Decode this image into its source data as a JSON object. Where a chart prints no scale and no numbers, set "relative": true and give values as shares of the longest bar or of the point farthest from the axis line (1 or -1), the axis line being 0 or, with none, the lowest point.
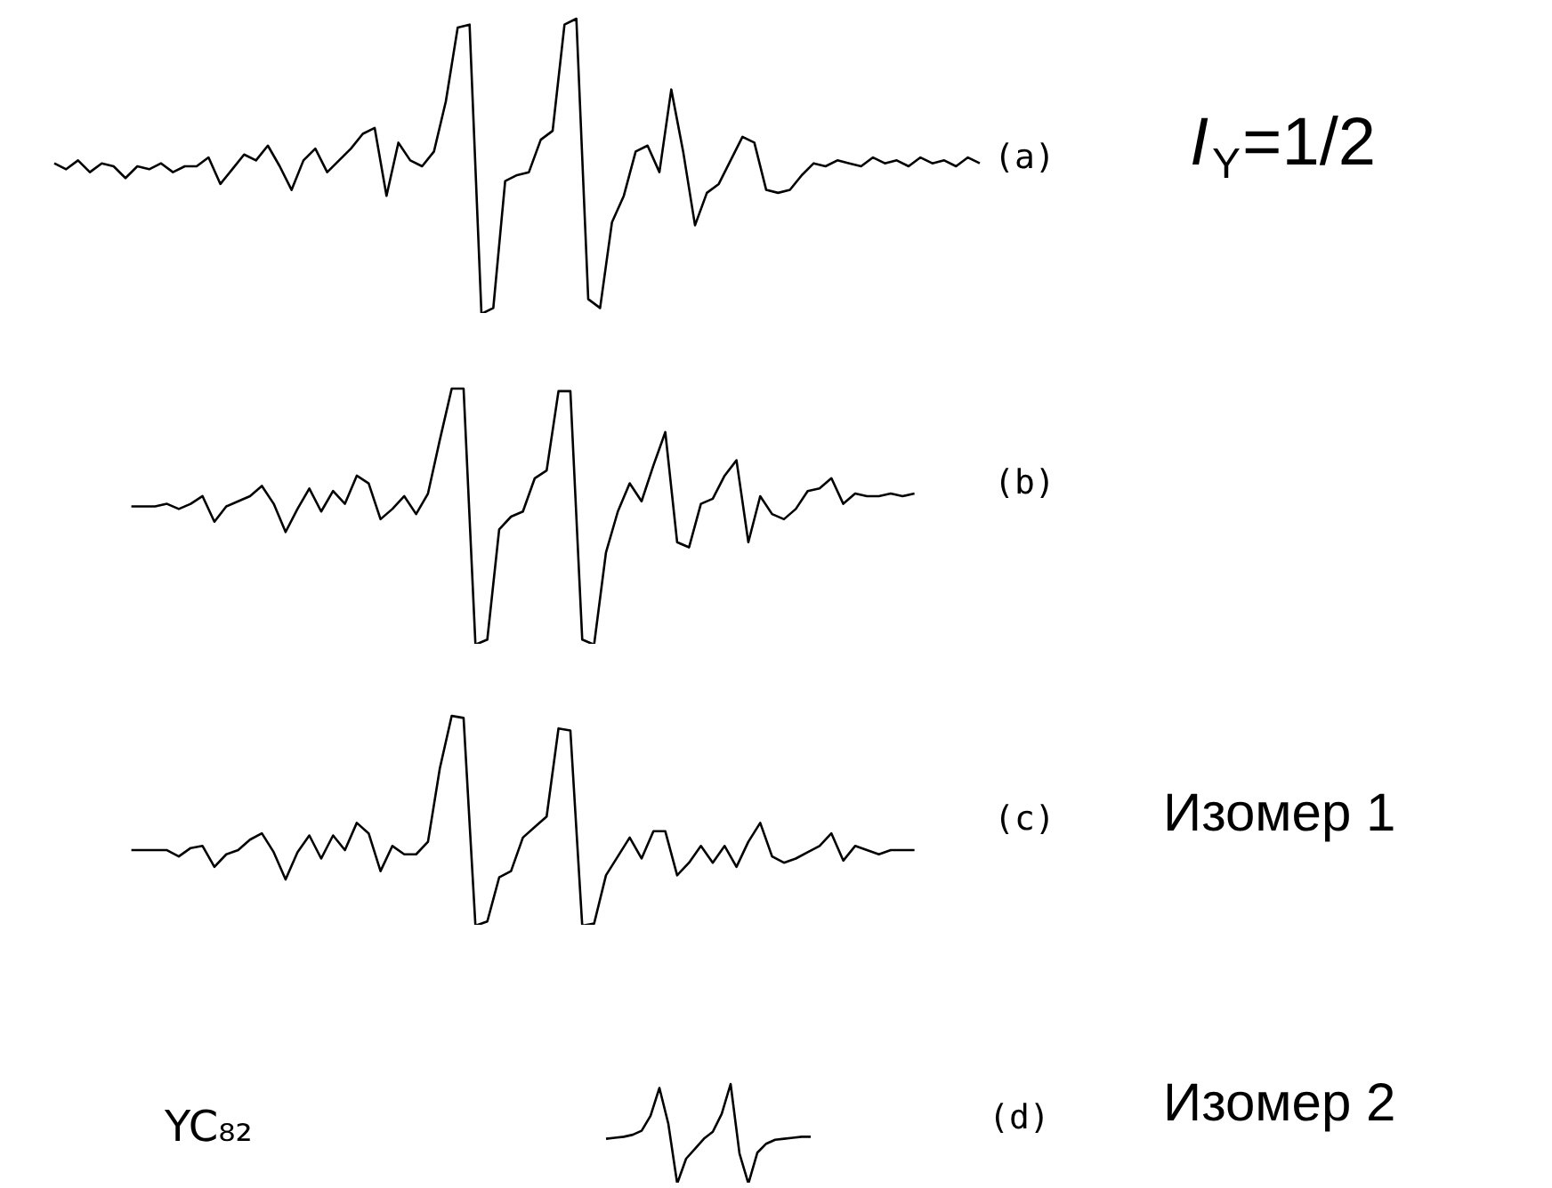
{
  "chart_data": [
    {
      "type": "line",
      "relative": true,
      "tick_labels": false,
      "color": "#000000",
      "annotations": [
        "(a)",
        "I$_{Y}$=1/2"
      ],
      "categories": [
        null,
        null,
        null,
        null,
        null,
        null,
        null,
        null,
        null,
        null,
        null,
        null,
        null,
        null,
        null,
        null,
        null,
        null,
        null,
        null,
        null,
        null,
        null,
        null,
        null,
        null,
        null,
        null,
        null,
        null,
        null,
        null,
        null,
        null,
        null,
        null,
        null,
        null,
        null,
        null,
        null,
        null,
        null,
        null,
        null,
        null,
        null,
        null,
        null,
        null,
        null,
        null,
        null,
        null,
        null,
        null,
        null,
        null,
        null,
        null,
        null,
        null,
        null,
        null,
        null,
        null,
        null,
        null,
        null,
        null,
        null,
        null,
        null,
        null,
        null,
        null,
        null,
        null,
        null
      ],
      "values": [
        0.51,
        0.49,
        0.52,
        0.48,
        0.51,
        0.5,
        0.46,
        0.5,
        0.49,
        0.51,
        0.48,
        0.5,
        0.5,
        0.53,
        0.44,
        0.49,
        0.54,
        0.52,
        0.57,
        0.5,
        0.42,
        0.52,
        0.56,
        0.48,
        0.52,
        0.56,
        0.61,
        0.63,
        0.4,
        0.58,
        0.52,
        0.5,
        0.55,
        0.72,
        0.97,
        0.98,
        0.0,
        0.02,
        0.45,
        0.47,
        0.48,
        0.59,
        0.62,
        0.98,
        1.0,
        0.05,
        0.02,
        0.31,
        0.4,
        0.55,
        0.57,
        0.48,
        0.76,
        0.55,
        0.3,
        0.41,
        0.44,
        0.52,
        0.6,
        0.58,
        0.42,
        0.41,
        0.42,
        0.47,
        0.51,
        0.5,
        0.52,
        0.51,
        0.5,
        0.53,
        0.51,
        0.52,
        0.5,
        0.53,
        0.51,
        0.52,
        0.5,
        0.53,
        0.51
      ]
    },
    {
      "type": "line",
      "relative": true,
      "tick_labels": false,
      "color": "#000000",
      "annotations": [
        "(b)"
      ],
      "categories": [
        null,
        null,
        null,
        null,
        null,
        null,
        null,
        null,
        null,
        null,
        null,
        null,
        null,
        null,
        null,
        null,
        null,
        null,
        null,
        null,
        null,
        null,
        null,
        null,
        null,
        null,
        null,
        null,
        null,
        null,
        null,
        null,
        null,
        null,
        null,
        null,
        null,
        null,
        null,
        null,
        null,
        null,
        null,
        null,
        null,
        null,
        null,
        null,
        null,
        null,
        null,
        null,
        null,
        null,
        null,
        null,
        null,
        null,
        null,
        null,
        null,
        null,
        null,
        null,
        null,
        null,
        null
      ],
      "values": [
        0.54,
        0.54,
        0.54,
        0.55,
        0.53,
        0.55,
        0.58,
        0.48,
        0.54,
        0.56,
        0.58,
        0.62,
        0.55,
        0.44,
        0.53,
        0.61,
        0.52,
        0.6,
        0.55,
        0.66,
        0.63,
        0.49,
        0.53,
        0.58,
        0.51,
        0.59,
        0.8,
        1.0,
        1.0,
        0.0,
        0.02,
        0.45,
        0.5,
        0.52,
        0.65,
        0.68,
        0.99,
        0.99,
        0.02,
        0.0,
        0.36,
        0.52,
        0.63,
        0.56,
        0.7,
        0.83,
        0.4,
        0.38,
        0.55,
        0.57,
        0.66,
        0.72,
        0.4,
        0.58,
        0.51,
        0.49,
        0.53,
        0.6,
        0.61,
        0.65,
        0.55,
        0.59,
        0.58,
        0.58,
        0.59,
        0.58,
        0.59
      ]
    },
    {
      "type": "line",
      "relative": true,
      "tick_labels": false,
      "color": "#000000",
      "annotations": [
        "(c)",
        "Изомер 1"
      ],
      "categories": [
        null,
        null,
        null,
        null,
        null,
        null,
        null,
        null,
        null,
        null,
        null,
        null,
        null,
        null,
        null,
        null,
        null,
        null,
        null,
        null,
        null,
        null,
        null,
        null,
        null,
        null,
        null,
        null,
        null,
        null,
        null,
        null,
        null,
        null,
        null,
        null,
        null,
        null,
        null,
        null,
        null,
        null,
        null,
        null,
        null,
        null,
        null,
        null,
        null,
        null,
        null,
        null,
        null,
        null,
        null,
        null,
        null,
        null,
        null,
        null,
        null,
        null,
        null,
        null,
        null,
        null,
        null
      ],
      "values": [
        0.36,
        0.36,
        0.36,
        0.36,
        0.33,
        0.37,
        0.38,
        0.28,
        0.34,
        0.36,
        0.41,
        0.44,
        0.35,
        0.22,
        0.35,
        0.43,
        0.32,
        0.43,
        0.36,
        0.49,
        0.44,
        0.26,
        0.38,
        0.34,
        0.34,
        0.4,
        0.75,
        1.0,
        0.99,
        0.0,
        0.02,
        0.23,
        0.26,
        0.42,
        0.47,
        0.52,
        0.94,
        0.93,
        0.0,
        0.01,
        0.24,
        0.33,
        0.42,
        0.32,
        0.45,
        0.45,
        0.24,
        0.3,
        0.38,
        0.3,
        0.38,
        0.28,
        0.4,
        0.49,
        0.33,
        0.3,
        0.32,
        0.35,
        0.38,
        0.44,
        0.31,
        0.38,
        0.36,
        0.34,
        0.36,
        0.36,
        0.36
      ]
    },
    {
      "type": "line",
      "relative": true,
      "tick_labels": false,
      "color": "#000000",
      "annotations": [
        "YC₈₂",
        "(d)",
        "Изомер 2"
      ],
      "categories": [
        null,
        null,
        null,
        null,
        null,
        null,
        null,
        null,
        null,
        null,
        null,
        null,
        null,
        null,
        null,
        null,
        null,
        null,
        null,
        null,
        null,
        null,
        null,
        null
      ],
      "values": [
        0.45,
        0.46,
        0.47,
        0.49,
        0.53,
        0.68,
        0.96,
        0.6,
        0.0,
        0.25,
        0.35,
        0.45,
        0.52,
        0.7,
        1.0,
        0.3,
        0.0,
        0.31,
        0.4,
        0.44,
        0.45,
        0.46,
        0.47,
        0.47
      ]
    }
  ]
}
